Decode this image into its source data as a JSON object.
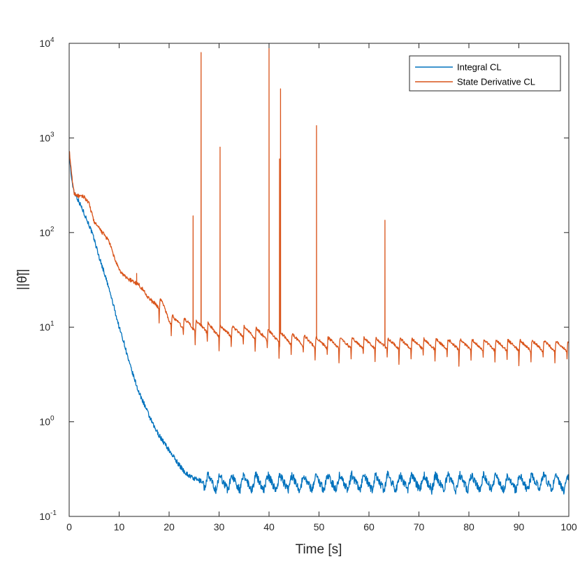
{
  "chart_data": {
    "type": "line",
    "title": "",
    "xlabel": "Time [s]",
    "ylabel": "||θ̃||",
    "yscale": "log",
    "xlim": [
      0,
      100
    ],
    "ylim": [
      0.1,
      10000
    ],
    "x_ticks": [
      "0",
      "10",
      "20",
      "30",
      "40",
      "50",
      "60",
      "70",
      "80",
      "90",
      "100"
    ],
    "y_ticks": [
      {
        "base": "10",
        "exp": "-1"
      },
      {
        "base": "10",
        "exp": "0"
      },
      {
        "base": "10",
        "exp": "1"
      },
      {
        "base": "10",
        "exp": "2"
      },
      {
        "base": "10",
        "exp": "3"
      },
      {
        "base": "10",
        "exp": "4"
      }
    ],
    "legend_position": "top-right",
    "grid": false,
    "series": [
      {
        "name": "Integral CL",
        "color": "#0072BD",
        "trend": {
          "x": [
            0,
            0.5,
            1,
            2,
            3,
            4,
            5,
            6,
            7,
            8,
            9,
            10,
            11,
            12,
            13,
            14,
            15,
            16,
            17,
            18,
            19,
            20,
            21,
            22,
            23,
            24,
            25,
            26,
            27,
            100
          ],
          "y": [
            700,
            350,
            270,
            210,
            160,
            120,
            85,
            55,
            38,
            25,
            16,
            10,
            6.8,
            4.2,
            2.9,
            2.0,
            1.55,
            1.15,
            0.88,
            0.72,
            0.6,
            0.5,
            0.42,
            0.35,
            0.3,
            0.27,
            0.25,
            0.24,
            0.23,
            0.225
          ]
        },
        "oscillation": {
          "start_x": 27,
          "low": 0.17,
          "high": 0.34,
          "period_s": 2.4
        }
      },
      {
        "name": "State Derivative CL",
        "color": "#D95319",
        "trend": {
          "x": [
            0,
            0.5,
            1,
            2,
            3,
            4,
            5,
            6,
            7,
            8,
            9,
            10,
            11,
            12,
            13,
            14,
            15,
            16,
            17,
            18,
            19,
            20,
            21,
            22,
            23,
            24,
            25,
            26,
            27,
            28,
            29,
            30,
            32,
            35,
            40,
            45,
            50,
            100
          ],
          "y": [
            750,
            400,
            260,
            240,
            240,
            200,
            130,
            110,
            95,
            80,
            55,
            40,
            35,
            32,
            30,
            28,
            24,
            20,
            18,
            16,
            14,
            11,
            10,
            10,
            9.5,
            9.5,
            9,
            9,
            9,
            8.5,
            8,
            8,
            8,
            7.8,
            7.2,
            6.5,
            6,
            5.5
          ]
        },
        "oscillation": {
          "start_x": 18,
          "low_ratio": 0.7,
          "high_ratio": 1.3,
          "period_s": 2.4
        },
        "spikes": [
          {
            "x": 13.5,
            "y": 37
          },
          {
            "x": 24.8,
            "y": 150
          },
          {
            "x": 26.4,
            "y": 8000
          },
          {
            "x": 30.2,
            "y": 800
          },
          {
            "x": 40.0,
            "y": 8800
          },
          {
            "x": 42.1,
            "y": 600
          },
          {
            "x": 42.3,
            "y": 3300
          },
          {
            "x": 49.5,
            "y": 1350
          },
          {
            "x": 63.2,
            "y": 135
          }
        ]
      }
    ]
  }
}
